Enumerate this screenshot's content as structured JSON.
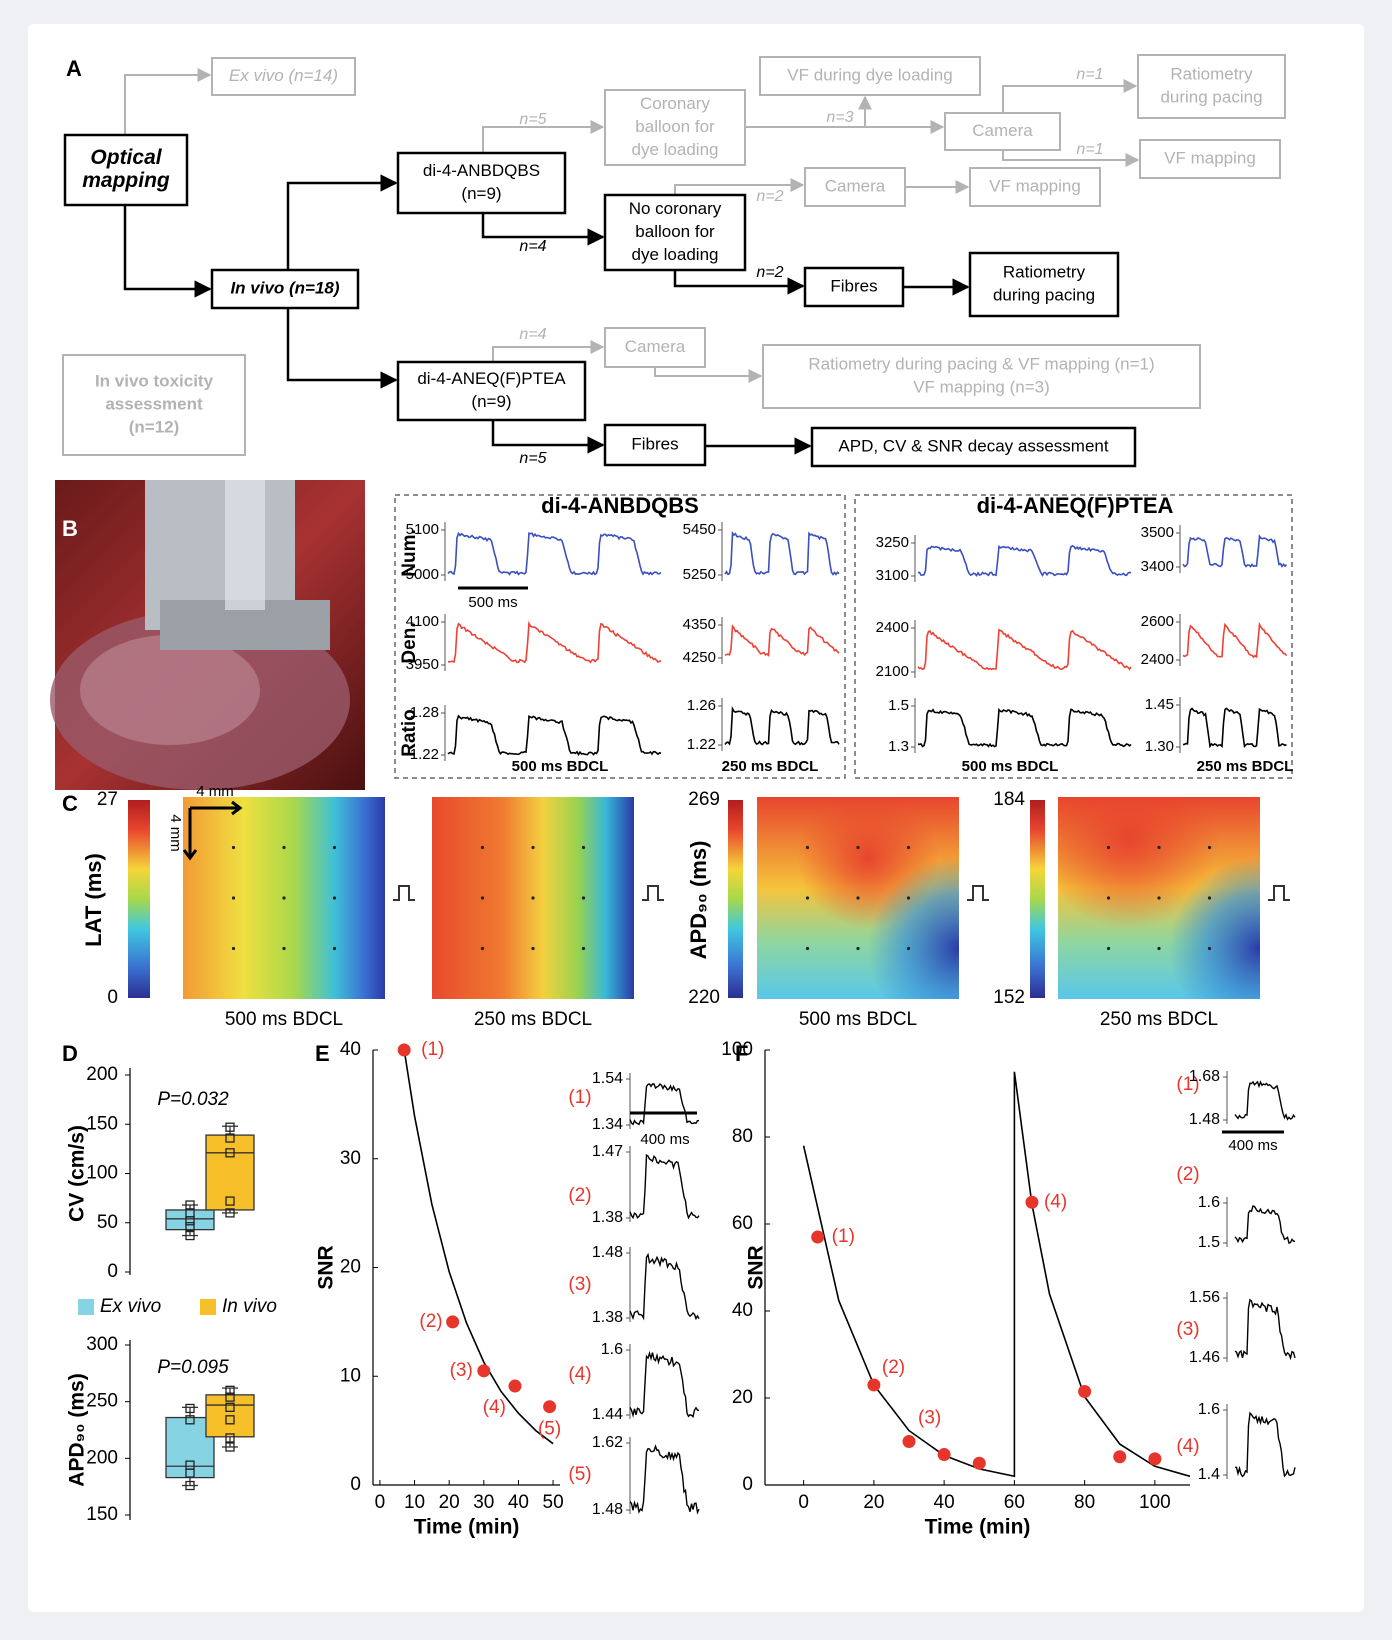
{
  "panel_labels": [
    "A",
    "B",
    "C",
    "D",
    "E",
    "F"
  ],
  "diagram": {
    "nodes": [
      {
        "lines": [
          "Ex vivo (n=14)"
        ],
        "color": "#b3b3b3",
        "style": "italic"
      },
      {
        "lines": [
          "Optical",
          "mapping"
        ],
        "color": "#000000",
        "style": "bold-italic"
      },
      {
        "lines": [
          "In vivo (n=18)"
        ],
        "color": "#000000",
        "style": "bold-italic"
      },
      {
        "lines": [
          "In vivo toxicity",
          "assessment",
          "(n=12)"
        ],
        "color": "#b3b3b3",
        "style": "bold"
      },
      {
        "lines": [
          "di-4-ANBDQBS",
          "(n=9)"
        ],
        "color": "#000000"
      },
      {
        "lines": [
          "Coronary",
          "balloon for",
          "dye loading"
        ],
        "color": "#b3b3b3"
      },
      {
        "lines": [
          "No coronary",
          "balloon for",
          "dye loading"
        ],
        "color": "#000000"
      },
      {
        "lines": [
          "VF during dye loading"
        ],
        "color": "#b3b3b3"
      },
      {
        "lines": [
          "Camera"
        ],
        "color": "#b3b3b3"
      },
      {
        "lines": [
          "Ratiometry",
          "during pacing"
        ],
        "color": "#b3b3b3"
      },
      {
        "lines": [
          "VF mapping"
        ],
        "color": "#b3b3b3"
      },
      {
        "lines": [
          "Camera"
        ],
        "color": "#b3b3b3"
      },
      {
        "lines": [
          "VF mapping"
        ],
        "color": "#b3b3b3"
      },
      {
        "lines": [
          "Fibres"
        ],
        "color": "#000000"
      },
      {
        "lines": [
          "Ratiometry",
          "during pacing"
        ],
        "color": "#000000"
      },
      {
        "lines": [
          "di-4-ANEQ(F)PTEA",
          "(n=9)"
        ],
        "color": "#000000"
      },
      {
        "lines": [
          "Camera"
        ],
        "color": "#b3b3b3"
      },
      {
        "lines": [
          "Ratiometry during pacing & VF mapping  (n=1)",
          "VF mapping (n=3)"
        ],
        "color": "#b3b3b3"
      },
      {
        "lines": [
          "Fibres"
        ],
        "color": "#000000"
      },
      {
        "lines": [
          "APD, CV & SNR decay assessment"
        ],
        "color": "#000000"
      }
    ],
    "edge_labels": [
      {
        "text": "n=5",
        "color": "#b3b3b3"
      },
      {
        "text": "n=3",
        "color": "#b3b3b3"
      },
      {
        "text": "n=1",
        "color": "#b3b3b3"
      },
      {
        "text": "n=1",
        "color": "#b3b3b3"
      },
      {
        "text": "n=2",
        "color": "#b3b3b3"
      },
      {
        "text": "n=4",
        "color": "#000000"
      },
      {
        "text": "n=2",
        "color": "#000000"
      },
      {
        "text": "n=4",
        "color": "#b3b3b3"
      },
      {
        "text": "n=5",
        "color": "#000000"
      }
    ]
  },
  "traces": {
    "row_labels": [
      "Num.",
      "Den.",
      "Ratio"
    ],
    "scale_bar": "500 ms",
    "colors": [
      "#3b4fbf",
      "#ee4136",
      "#000000"
    ],
    "groups": [
      {
        "title": "di-4-ANBDQBS",
        "columns": [
          {
            "caption": "500 ms BDCL",
            "yticks": [
              [
                5000,
                5100
              ],
              [
                3950,
                4100
              ],
              [
                1.22,
                1.28
              ]
            ]
          },
          {
            "caption": "250 ms BDCL",
            "yticks": [
              [
                5250,
                5450
              ],
              [
                4250,
                4350
              ],
              [
                1.22,
                1.26
              ]
            ]
          }
        ]
      },
      {
        "title": "di-4-ANEQ(F)PTEA",
        "columns": [
          {
            "caption": "500 ms BDCL",
            "yticks": [
              [
                3100,
                3250
              ],
              [
                2100,
                2400
              ],
              [
                1.3,
                1.5
              ]
            ]
          },
          {
            "caption": "250 ms BDCL",
            "yticks": [
              [
                3400,
                3500
              ],
              [
                2400,
                2600
              ],
              [
                {
                  "value": 1.3,
                  "label": "1.30"
                },
                1.45
              ]
            ]
          }
        ]
      }
    ]
  },
  "maps": {
    "scale_bar": "4 mm",
    "panels": [
      {
        "caption": "500 ms BDCL",
        "colorbar": {
          "label": "LAT (ms)",
          "clim": [
            0,
            27
          ]
        }
      },
      {
        "caption": "250 ms BDCL"
      },
      {
        "caption": "500 ms BDCL",
        "colorbar": {
          "label": "APD₉₀ (ms)",
          "clim": [
            220,
            269
          ]
        }
      },
      {
        "caption": "250 ms BDCL",
        "colorbar": {
          "clim": [
            152,
            184
          ]
        }
      }
    ]
  },
  "chart_data": [
    {
      "type": "box",
      "ylabel": "CV (cm/s)",
      "annotation": "P=0.032",
      "ylim": [
        0,
        200
      ],
      "yticks": [
        0,
        50,
        100,
        150,
        200
      ],
      "series": [
        {
          "name": "Ex vivo",
          "color": "#86d3e3",
          "min": 37,
          "q1": 43,
          "median": 54,
          "q3": 63,
          "max": 68,
          "points": [
            68,
            60,
            52,
            46,
            37
          ]
        },
        {
          "name": "In vivo",
          "color": "#f7c02a",
          "min": 60,
          "q1": 63,
          "median": 121,
          "q3": 139,
          "max": 148,
          "points": [
            147,
            136,
            121,
            72,
            60
          ]
        }
      ]
    },
    {
      "type": "box",
      "ylabel": "APD₉₀ (ms)",
      "annotation": "P=0.095",
      "ylim": [
        150,
        300
      ],
      "yticks": [
        150,
        200,
        250,
        300
      ],
      "series": [
        {
          "color": "#86d3e3",
          "min": 176,
          "q1": 183,
          "median": 193,
          "q3": 236,
          "max": 245,
          "points": [
            244,
            234,
            194,
            187,
            176
          ]
        },
        {
          "color": "#f7c02a",
          "min": 210,
          "q1": 219,
          "median": 247,
          "q3": 256,
          "max": 262,
          "points": [
            260,
            254,
            245,
            234,
            218,
            210
          ]
        }
      ]
    },
    {
      "type": "scatter",
      "xlabel": "Time (min)",
      "ylabel": "SNR",
      "xlim": [
        -2,
        52
      ],
      "ylim": [
        0,
        40
      ],
      "xticks": [
        0,
        10,
        20,
        30,
        40,
        50
      ],
      "yticks": [
        0,
        10,
        20,
        30,
        40
      ],
      "color": "#e8352c",
      "x": [
        7,
        21,
        30,
        39,
        49
      ],
      "values": [
        40,
        15,
        10.5,
        9.1,
        7.2
      ],
      "point_labels": [
        "(1)",
        "(2)",
        "(3)",
        "(4)",
        "(5)"
      ],
      "fit": {
        "color": "#000000",
        "x": [
          7,
          10,
          15,
          20,
          25,
          30,
          35,
          40,
          45,
          50
        ],
        "values": [
          40,
          33.9,
          25.8,
          19.6,
          14.9,
          11.3,
          8.6,
          6.6,
          5.0,
          3.8
        ]
      },
      "insets": {
        "scale_bar": "400 ms",
        "traces": [
          {
            "label": "(1)",
            "yticks": [
              1.34,
              1.54
            ]
          },
          {
            "label": "(2)",
            "yticks": [
              1.38,
              1.47
            ]
          },
          {
            "label": "(3)",
            "yticks": [
              1.38,
              1.48
            ]
          },
          {
            "label": "(4)",
            "yticks": [
              1.44,
              1.6
            ]
          },
          {
            "label": "(5)",
            "yticks": [
              1.48,
              1.62
            ]
          }
        ]
      }
    },
    {
      "type": "scatter",
      "xlabel": "Time (min)",
      "ylabel": "SNR",
      "xlim": [
        -11,
        110
      ],
      "ylim": [
        0,
        100
      ],
      "xticks": [
        0,
        20,
        40,
        60,
        80,
        100
      ],
      "yticks": [
        0,
        20,
        40,
        60,
        80,
        100
      ],
      "color": "#e8352c",
      "x": [
        4,
        20,
        30,
        40,
        50,
        65,
        80,
        90,
        100
      ],
      "values": [
        57,
        23,
        10,
        7,
        5,
        65,
        21.5,
        6.5,
        6
      ],
      "point_labels": [
        "(1)",
        "(2)",
        "(3)",
        null,
        null,
        "(4)",
        null,
        null,
        null
      ],
      "fit": {
        "color": "#000000",
        "x": [
          0,
          10,
          20,
          30,
          40,
          50,
          60,
          60,
          65,
          70,
          80,
          90,
          100,
          110
        ],
        "values": [
          78,
          42.4,
          23,
          12.5,
          6.8,
          3.7,
          2,
          95,
          64.6,
          43.9,
          20.3,
          9.4,
          4.3,
          2
        ]
      },
      "insets": {
        "scale_bar": "400 ms",
        "traces": [
          {
            "label": "(1)",
            "yticks": [
              1.48,
              1.68
            ]
          },
          {
            "label": "(2)",
            "yticks": [
              1.5,
              1.6
            ]
          },
          {
            "label": "(3)",
            "yticks": [
              1.46,
              1.56
            ]
          },
          {
            "label": "(4)",
            "yticks": [
              1.4,
              1.6
            ]
          }
        ]
      }
    }
  ]
}
